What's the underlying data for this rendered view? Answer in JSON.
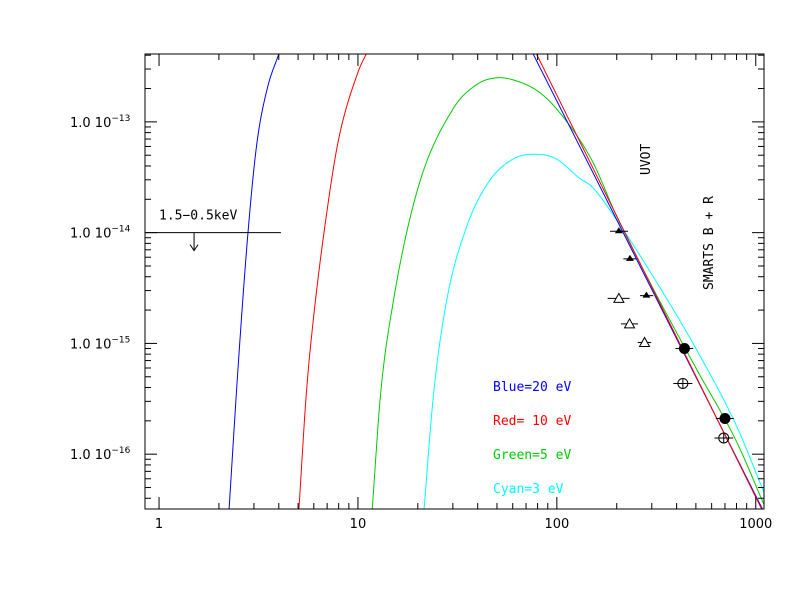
{
  "chart_data": {
    "type": "line",
    "x_scale": "log",
    "y_scale": "log",
    "xlim": [
      0.85,
      1100
    ],
    "ylim": [
      3.2e-17,
      4.1e-13
    ],
    "x_ticks": [
      {
        "value": 1,
        "label": "1"
      },
      {
        "value": 10,
        "label": "10"
      },
      {
        "value": 100,
        "label": "100"
      },
      {
        "value": 1000,
        "label": "1000"
      }
    ],
    "y_ticks": [
      {
        "value": 1e-13,
        "mantissa": "1.0",
        "base": "10",
        "exp": "−13"
      },
      {
        "value": 1e-14,
        "mantissa": "1.0",
        "base": "10",
        "exp": "−14"
      },
      {
        "value": 1e-15,
        "mantissa": "1.0",
        "base": "10",
        "exp": "−15"
      },
      {
        "value": 1e-16,
        "mantissa": "1.0",
        "base": "10",
        "exp": "−16"
      }
    ],
    "series": [
      {
        "name": "Blue=20 eV",
        "color": "#0000ff",
        "x": [
          2.25,
          2.5,
          2.8,
          3.1,
          3.5,
          4.0
        ],
        "y": [
          3.2e-17,
          6.3e-16,
          1e-14,
          6.3e-14,
          2e-13,
          4.1e-13
        ]
      },
      {
        "name": "Red= 10 eV",
        "color": "#ff0000",
        "x": [
          5.05,
          5.5,
          6.0,
          7.0,
          8.0,
          10.0,
          11.0
        ],
        "y": [
          3.2e-17,
          3.5e-16,
          1.8e-15,
          1.6e-14,
          7e-14,
          2.8e-13,
          4.1e-13
        ]
      },
      {
        "name": "Green=5 eV",
        "color": "#00cc00",
        "x": [
          11.8,
          13,
          15,
          20,
          30,
          40,
          50,
          60,
          80,
          100,
          150,
          200,
          300,
          500,
          800,
          1100
        ],
        "y": [
          3.2e-17,
          3.5e-16,
          2.3e-15,
          2.5e-14,
          1.3e-13,
          2.2e-13,
          2.5e-13,
          2.4e-13,
          1.9e-13,
          1.3e-13,
          4.5e-14,
          1.4e-14,
          3.3e-15,
          6e-16,
          1.3e-16,
          3.5e-17
        ]
      },
      {
        "name": "Cyan=3 eV",
        "color": "#00ffff",
        "x": [
          21.5,
          24,
          28,
          35,
          45,
          60,
          80,
          100,
          130,
          150,
          200,
          300,
          500,
          800,
          1100
        ],
        "y": [
          3.2e-17,
          3.5e-16,
          2.5e-15,
          1.1e-14,
          2.8e-14,
          4.6e-14,
          5.1e-14,
          4.6e-14,
          3.1e-14,
          2.6e-14,
          1.3e-14,
          4.2e-15,
          9e-16,
          1.8e-16,
          4.5e-17
        ]
      }
    ],
    "powerlaw_lines": [
      {
        "color": "#0000ff",
        "x": [
          76,
          1080
        ],
        "y": [
          4.1e-13,
          3.2e-17
        ]
      },
      {
        "color": "#ff0000",
        "x": [
          79,
          1070
        ],
        "y": [
          4.1e-13,
          3.2e-17
        ]
      }
    ],
    "points": [
      {
        "marker": "filled-triangle",
        "x": 205,
        "y": 1.03e-14,
        "xerr": [
          185,
          228
        ]
      },
      {
        "marker": "filled-triangle",
        "x": 233,
        "y": 5.8e-15,
        "xerr": [
          216,
          250
        ]
      },
      {
        "marker": "filled-triangle",
        "x": 282,
        "y": 2.7e-15,
        "xerr": [
          262,
          305
        ]
      },
      {
        "marker": "open-triangle",
        "x": 205,
        "y": 2.55e-15,
        "xerr": [
          180,
          232
        ]
      },
      {
        "marker": "open-triangle",
        "x": 232,
        "y": 1.5e-15,
        "xerr": [
          210,
          256
        ]
      },
      {
        "marker": "open-triangle",
        "x": 276,
        "y": 1.02e-15,
        "xerr": [
          255,
          298
        ]
      },
      {
        "marker": "filled-circle",
        "x": 438,
        "y": 9e-16,
        "xerr": [
          395,
          485
        ]
      },
      {
        "marker": "open-circle-cross",
        "x": 430,
        "y": 4.35e-16,
        "xerr": [
          385,
          480
        ]
      },
      {
        "marker": "filled-circle",
        "x": 700,
        "y": 2.1e-16,
        "xerr": [
          630,
          775
        ]
      },
      {
        "marker": "open-circle-cross",
        "x": 690,
        "y": 1.4e-16,
        "xerr": [
          620,
          770
        ]
      }
    ],
    "upper_limit": {
      "label": "1.5−0.5keV",
      "y": 1e-14,
      "x_range": [
        0.85,
        4.1
      ],
      "arrow_x": 1.5
    }
  },
  "annotations": {
    "uvot": "UVOT",
    "smarts": "SMARTS B + R",
    "legend": [
      {
        "text": "Blue=20 eV",
        "color": "#0000ff"
      },
      {
        "text": "Red= 10 eV",
        "color": "#ff0000"
      },
      {
        "text": "Green=5 eV",
        "color": "#00cc00"
      },
      {
        "text": "Cyan=3 eV",
        "color": "#00ffff"
      }
    ]
  }
}
